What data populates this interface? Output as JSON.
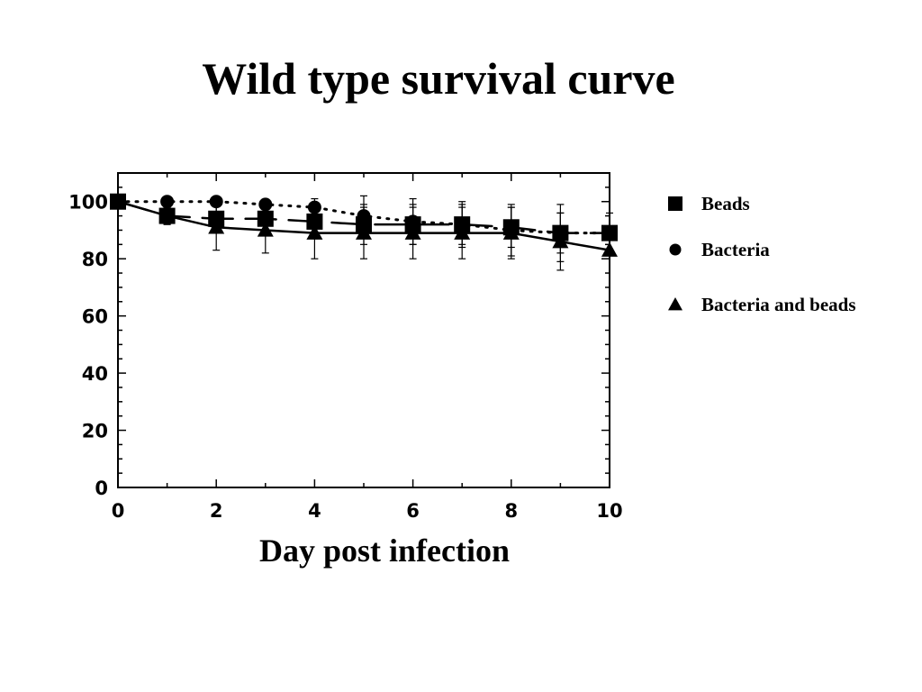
{
  "chart_data": {
    "type": "line",
    "title": "Wild type survival curve",
    "xlabel": "Day post infection",
    "ylabel": "",
    "xlim": [
      0,
      10
    ],
    "ylim": [
      0,
      110
    ],
    "xticks": [
      0,
      2,
      4,
      6,
      8,
      10
    ],
    "yticks": [
      0,
      20,
      40,
      60,
      80,
      100
    ],
    "grid": false,
    "legend_position": "right",
    "series": [
      {
        "name": "Beads",
        "marker": "square",
        "line_style": "long-dash",
        "x": [
          0,
          1,
          2,
          3,
          4,
          5,
          6,
          7,
          8,
          9,
          10
        ],
        "y": [
          100,
          95,
          94,
          94,
          93,
          92,
          92,
          92,
          91,
          89,
          89
        ],
        "error": [
          0,
          3,
          5,
          6,
          6,
          7,
          7,
          7,
          7,
          7,
          0
        ]
      },
      {
        "name": "Bacteria",
        "marker": "circle",
        "line_style": "dotted",
        "x": [
          0,
          1,
          2,
          3,
          4,
          5,
          6,
          7,
          8,
          9,
          10
        ],
        "y": [
          100,
          100,
          100,
          99,
          98,
          95,
          93,
          92,
          90,
          89,
          89
        ],
        "error": [
          0,
          0,
          0,
          0,
          3,
          7,
          8,
          8,
          9,
          10,
          7
        ]
      },
      {
        "name": "Bacteria and beads",
        "marker": "triangle",
        "line_style": "solid",
        "x": [
          0,
          1,
          2,
          3,
          4,
          5,
          6,
          7,
          8,
          9,
          10
        ],
        "y": [
          100,
          95,
          91,
          90,
          89,
          89,
          89,
          89,
          89,
          86,
          83
        ],
        "error": [
          0,
          3,
          8,
          8,
          9,
          9,
          9,
          9,
          9,
          10,
          0
        ]
      }
    ]
  }
}
